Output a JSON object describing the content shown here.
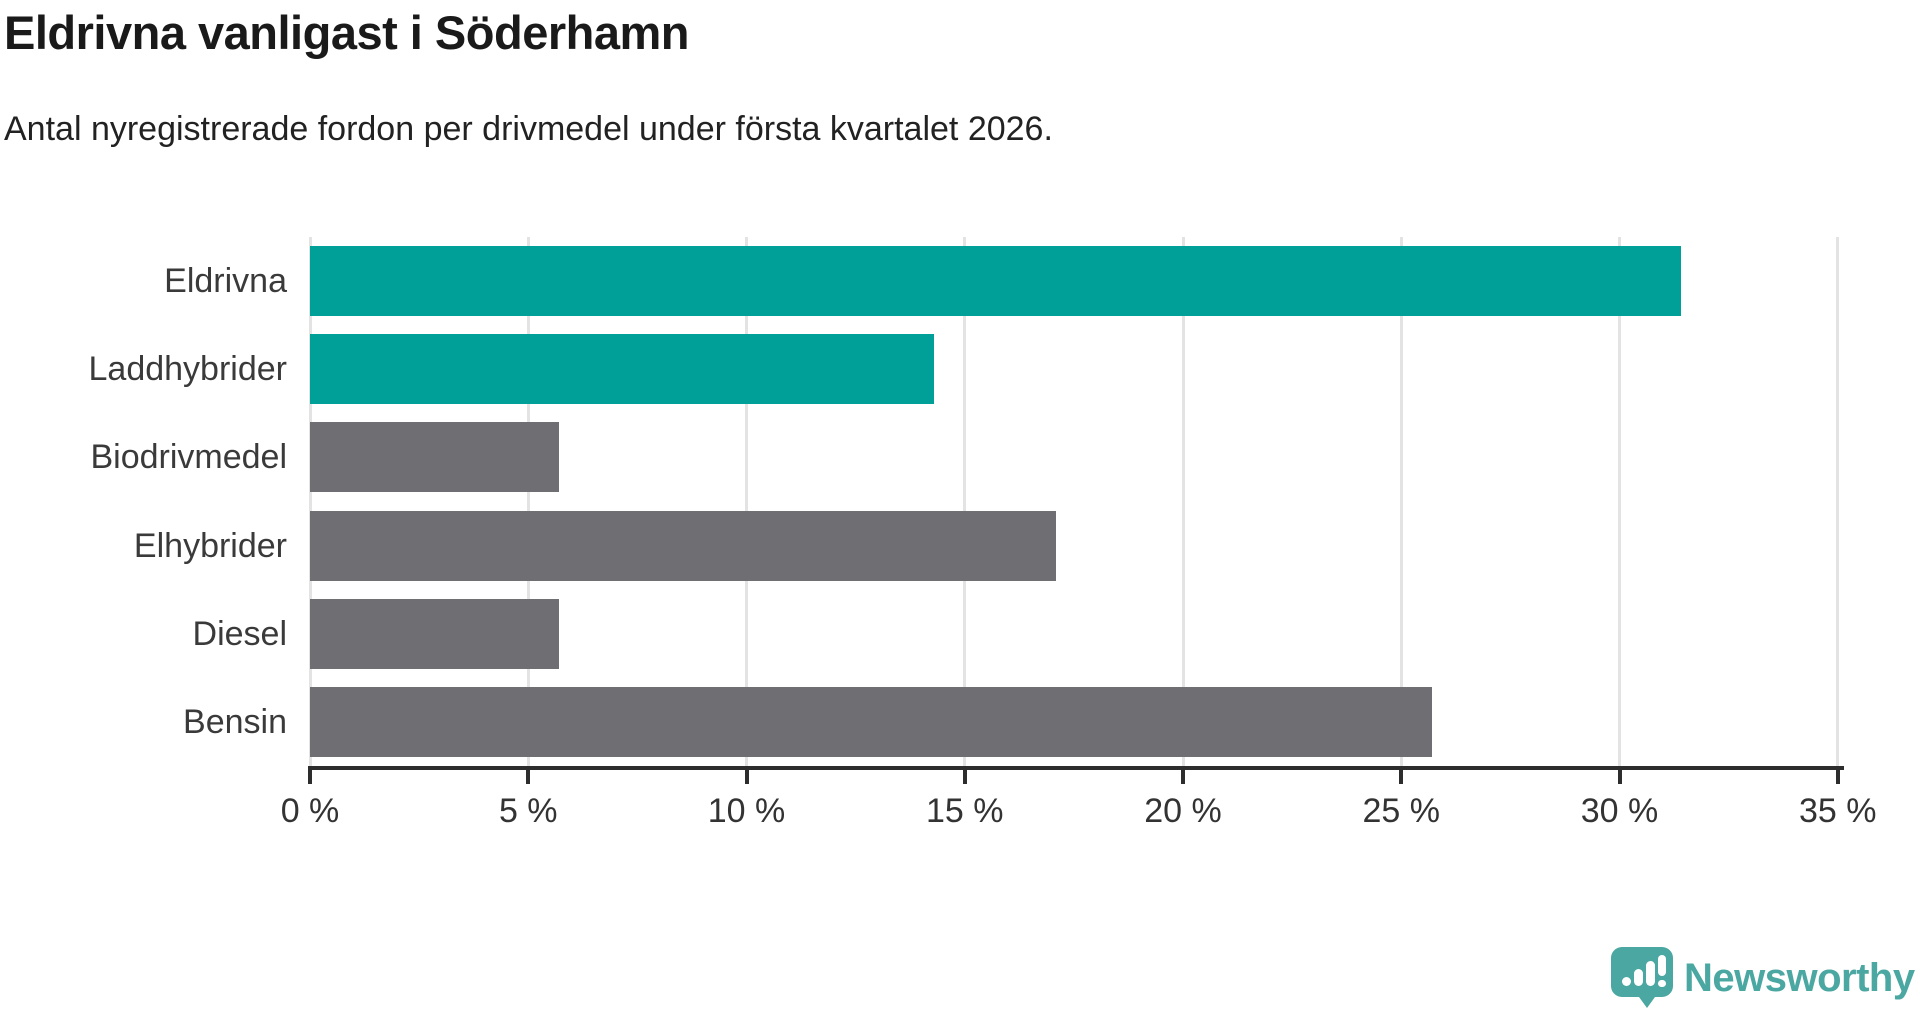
{
  "header": {
    "title": "Eldrivna vanligast i Söderhamn",
    "subtitle": "Antal nyregistrerade fordon per drivmedel under första kvartalet 2026."
  },
  "chart_data": {
    "type": "bar",
    "orientation": "horizontal",
    "title": "Eldrivna vanligast i Söderhamn",
    "subtitle": "Antal nyregistrerade fordon per drivmedel under första kvartalet 2026.",
    "categories": [
      "Eldrivna",
      "Laddhybrider",
      "Biodrivmedel",
      "Elhybrider",
      "Diesel",
      "Bensin"
    ],
    "values": [
      31.4,
      14.3,
      5.7,
      17.1,
      5.7,
      25.7
    ],
    "unit": "%",
    "bar_colors": [
      "#00a099",
      "#00a099",
      "#6e6e73",
      "#6e6e73",
      "#6e6e73",
      "#6e6e73"
    ],
    "xlabel": "",
    "ylabel": "",
    "xlim": [
      0,
      35
    ],
    "x_ticks": [
      0,
      5,
      10,
      15,
      20,
      25,
      30,
      35
    ],
    "x_tick_labels": [
      "0 %",
      "5 %",
      "10 %",
      "15 %",
      "20 %",
      "25 %",
      "30 %",
      "35 %"
    ],
    "grid": "vertical-gridlines-behind-bars",
    "legend": "none"
  },
  "colors": {
    "accent_teal": "#00a099",
    "bar_gray": "#6e6e73",
    "grid": "#e3e3e3",
    "axis": "#2d2d2d",
    "logo_teal": "#4ba7a1"
  },
  "footer": {
    "brand": "Newsworthy"
  }
}
